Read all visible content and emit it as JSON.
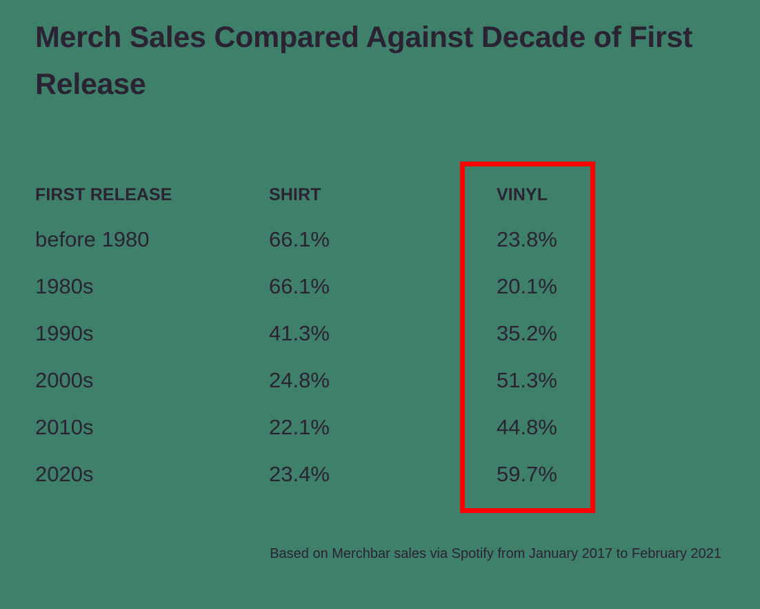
{
  "title": "Merch Sales Compared Against Decade of First Release",
  "columns": [
    "FIRST RELEASE",
    "SHIRT",
    "VINYL"
  ],
  "rows": [
    [
      "before 1980",
      "66.1%",
      "23.8%"
    ],
    [
      "1980s",
      "66.1%",
      "20.1%"
    ],
    [
      "1990s",
      "41.3%",
      "35.2%"
    ],
    [
      "2000s",
      "24.8%",
      "51.3%"
    ],
    [
      "2010s",
      "22.1%",
      "44.8%"
    ],
    [
      "2020s",
      "23.4%",
      "59.7%"
    ]
  ],
  "footnote": "Based on Merchbar sales via Spotify from January 2017 to February 2021",
  "colors": {
    "background": "#3e806a",
    "text": "#2b2233",
    "highlight": "#ff0000"
  },
  "highlighted_column": "VINYL",
  "chart_data": {
    "type": "table",
    "title": "Merch Sales Compared Against Decade of First Release",
    "columns": [
      "FIRST RELEASE",
      "SHIRT",
      "VINYL"
    ],
    "categories": [
      "before 1980",
      "1980s",
      "1990s",
      "2000s",
      "2010s",
      "2020s"
    ],
    "series": [
      {
        "name": "SHIRT",
        "values": [
          66.1,
          66.1,
          41.3,
          24.8,
          22.1,
          23.4
        ]
      },
      {
        "name": "VINYL",
        "values": [
          23.8,
          20.1,
          35.2,
          51.3,
          44.8,
          59.7
        ]
      }
    ],
    "unit": "%",
    "note": "Based on Merchbar sales via Spotify from January 2017 to February 2021"
  }
}
